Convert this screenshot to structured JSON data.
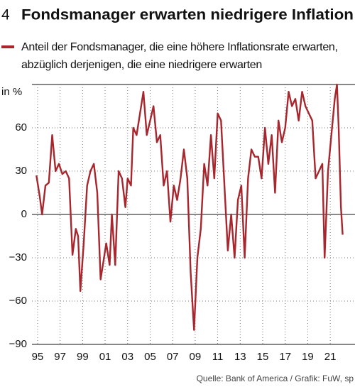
{
  "chart_data": {
    "type": "line",
    "number": "4",
    "title": "Fondsmanager erwarten niedrigere Inflation",
    "y_label": "in %",
    "source": "Quelle: Bank of America / Grafik: FuW, sp",
    "series": [
      {
        "name": "Anteil der Fondsmanager, die eine höhere Inflationsrate erwarten, abzüglich derjenigen, die eine niedrigere erwarten",
        "color": "#a8262d",
        "x": [
          1994.9,
          1995.2,
          1995.4,
          1995.7,
          1996.0,
          1996.3,
          1996.6,
          1996.9,
          1997.2,
          1997.5,
          1997.8,
          1998.1,
          1998.4,
          1998.6,
          1998.8,
          1999.1,
          1999.4,
          1999.7,
          2000.0,
          2000.3,
          2000.6,
          2000.9,
          2001.1,
          2001.4,
          2001.6,
          2001.9,
          2002.2,
          2002.5,
          2002.8,
          2003.0,
          2003.3,
          2003.5,
          2003.8,
          2004.1,
          2004.4,
          2004.7,
          2005.0,
          2005.3,
          2005.6,
          2005.9,
          2006.2,
          2006.5,
          2006.8,
          2007.1,
          2007.4,
          2007.7,
          2008.0,
          2008.3,
          2008.6,
          2008.9,
          2009.2,
          2009.5,
          2009.8,
          2010.1,
          2010.4,
          2010.7,
          2011.0,
          2011.3,
          2011.6,
          2011.9,
          2012.2,
          2012.5,
          2012.8,
          2013.1,
          2013.4,
          2013.7,
          2014.0,
          2014.3,
          2014.6,
          2014.9,
          2015.2,
          2015.5,
          2015.8,
          2016.1,
          2016.4,
          2016.7,
          2017.0,
          2017.3,
          2017.6,
          2017.9,
          2018.2,
          2018.5,
          2018.8,
          2019.1,
          2019.4,
          2019.7,
          2020.0,
          2020.3,
          2020.5,
          2020.8,
          2021.1,
          2021.4,
          2021.6,
          2021.75,
          2021.95,
          2022.1
        ],
        "values": [
          27,
          12,
          0,
          20,
          22,
          55,
          30,
          35,
          28,
          30,
          25,
          -28,
          -10,
          -15,
          -53,
          -20,
          20,
          30,
          35,
          15,
          -45,
          -30,
          -20,
          -35,
          0,
          -35,
          30,
          25,
          5,
          25,
          20,
          60,
          55,
          70,
          85,
          55,
          65,
          75,
          50,
          55,
          20,
          30,
          -5,
          20,
          10,
          25,
          45,
          25,
          -40,
          -80,
          -30,
          -10,
          35,
          20,
          55,
          25,
          70,
          65,
          20,
          -25,
          0,
          -30,
          10,
          20,
          -30,
          25,
          45,
          40,
          40,
          25,
          60,
          35,
          55,
          15,
          65,
          50,
          60,
          85,
          75,
          80,
          65,
          85,
          75,
          70,
          65,
          25,
          30,
          35,
          -30,
          30,
          55,
          80,
          90,
          60,
          5,
          -14
        ]
      }
    ],
    "xlim": [
      1994.5,
      2023.2
    ],
    "xticks": [
      {
        "value": 1995,
        "label": "95"
      },
      {
        "value": 1997,
        "label": "97"
      },
      {
        "value": 1999,
        "label": "99"
      },
      {
        "value": 2001,
        "label": "01"
      },
      {
        "value": 2003,
        "label": "03"
      },
      {
        "value": 2005,
        "label": "05"
      },
      {
        "value": 2007,
        "label": "07"
      },
      {
        "value": 2009,
        "label": "09"
      },
      {
        "value": 2011,
        "label": "11"
      },
      {
        "value": 2013,
        "label": "13"
      },
      {
        "value": 2015,
        "label": "15"
      },
      {
        "value": 2017,
        "label": "17"
      },
      {
        "value": 2019,
        "label": "19"
      },
      {
        "value": 2021,
        "label": "21"
      }
    ],
    "ylim": [
      -90,
      90
    ],
    "yticks": [
      {
        "value": 60,
        "label": "60"
      },
      {
        "value": 30,
        "label": "30"
      },
      {
        "value": 0,
        "label": "0"
      },
      {
        "value": -30,
        "label": "−30"
      },
      {
        "value": -60,
        "label": "−60"
      },
      {
        "value": -90,
        "label": "−90"
      }
    ],
    "grid": true
  }
}
